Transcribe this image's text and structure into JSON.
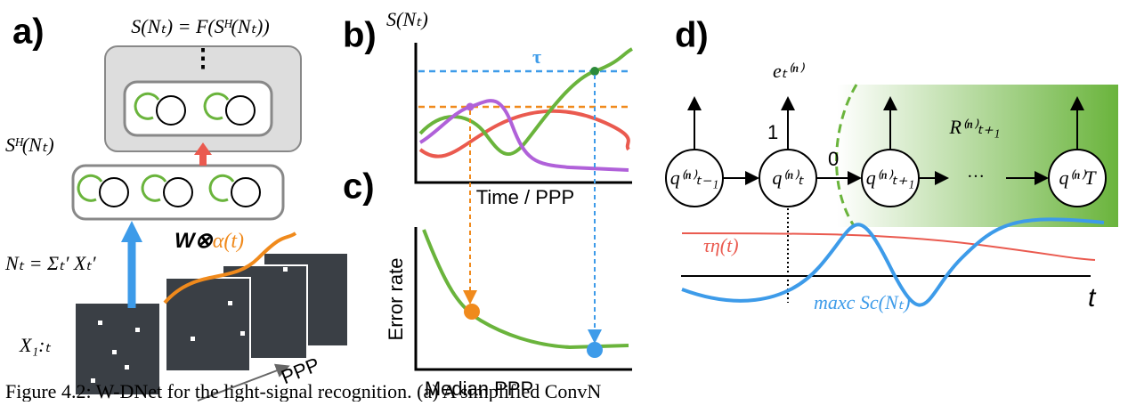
{
  "panel_a": {
    "label": "a)",
    "output_formula": "S(Nₜ) = F(Sᴴ(Nₜ))",
    "dots": "⋮",
    "hidden_state": "Sᴴ(Nₜ)",
    "input_formula": "Nₜ = Σₜ′ Xₜ′",
    "weight": "W⊗",
    "weight_alpha": "α(t)",
    "frames": "X₁:ₜ",
    "ppp": "PPP"
  },
  "panel_b": {
    "label": "b)",
    "y_label": "S(Nₜ)",
    "threshold": "τ",
    "x_label": "Time / PPP"
  },
  "panel_c": {
    "label": "c)",
    "y_label": "Error rate",
    "x_label": "Median PPP"
  },
  "panel_d": {
    "label": "d)",
    "emission": "eₜ⁽ⁿ⁾",
    "one": "1",
    "zero": "0",
    "reward": "R⁽ⁿ⁾ₜ₊₁",
    "nodes": [
      "q⁽ⁿ⁾ₜ₋₁",
      "q⁽ⁿ⁾ₜ",
      "q⁽ⁿ⁾ₜ₊₁",
      "q⁽ⁿ⁾T"
    ],
    "ellipsis": "···",
    "tau_eta": "τη(t)",
    "max_score": "maxc Sc(Nₜ)",
    "time_axis": "t"
  },
  "caption": "Figure 4.2: W-DNet for the light-signal recognition. (a) A simplified ConvN"
}
